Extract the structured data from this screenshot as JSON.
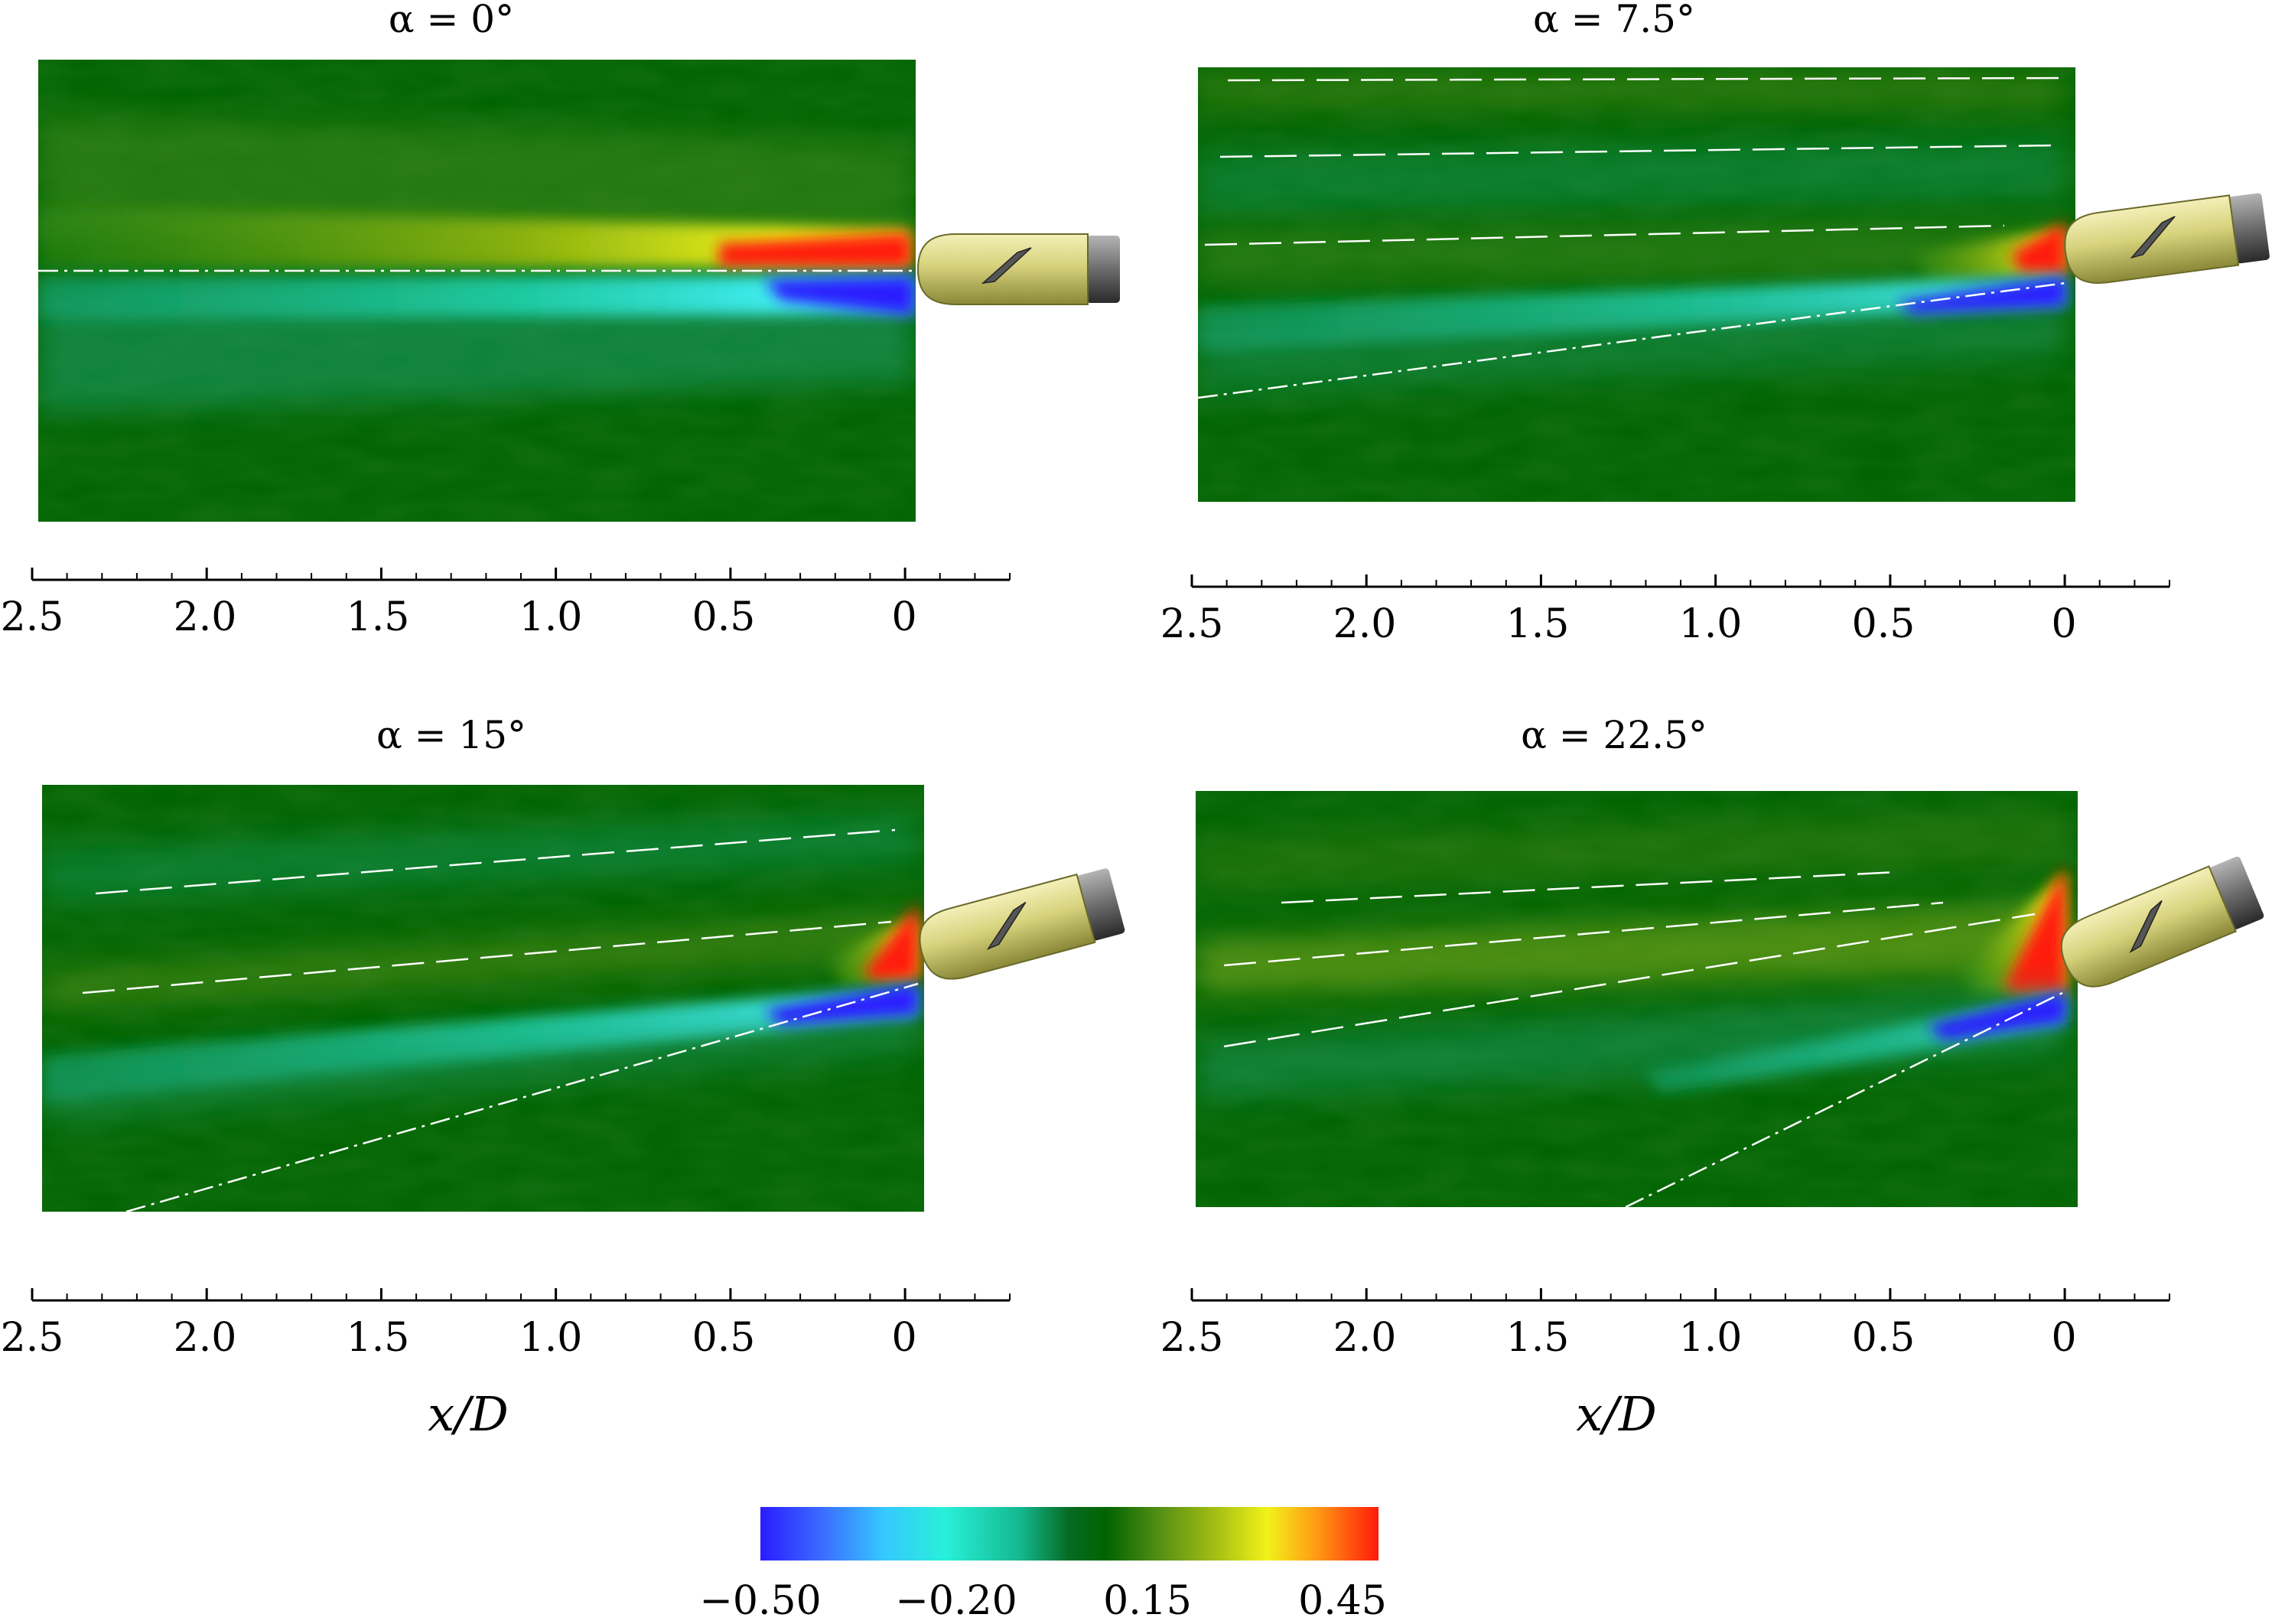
{
  "chart_data": {
    "type": "heatmap",
    "xlabel": "x/D",
    "colorbar": {
      "ticks": [
        "−0.50",
        "−0.20",
        "0.15",
        "0.45"
      ],
      "vmin": -0.5,
      "vmax": 0.45,
      "colors": [
        "#2a1cff",
        "#36c8ff",
        "#28f0d8",
        "#14b890",
        "#066a22",
        "#006400",
        "#4f8c14",
        "#a8c014",
        "#f2f21a",
        "#ff9a14",
        "#ff1a0a"
      ]
    },
    "x_axis": {
      "ticks": [
        "2.5",
        "2.0",
        "1.5",
        "1.0",
        "0.5",
        "0"
      ],
      "range": [
        2.5,
        -0.3
      ]
    },
    "panels": [
      {
        "title": "α = 0°",
        "alpha_deg": 0
      },
      {
        "title": "α = 7.5°",
        "alpha_deg": 7.5
      },
      {
        "title": "α = 15°",
        "alpha_deg": 15
      },
      {
        "title": "α = 22.5°",
        "alpha_deg": 22.5
      }
    ]
  }
}
